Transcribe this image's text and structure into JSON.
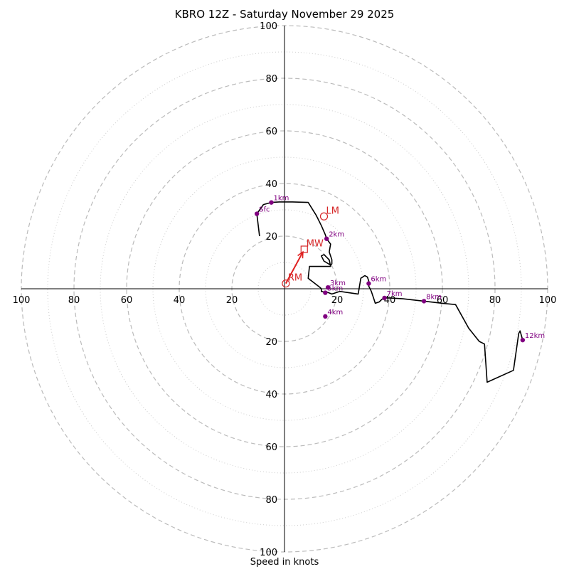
{
  "title": "KBRO 12Z - Saturday November 29 2025",
  "footer": "Speed in knots",
  "colors": {
    "trace": "#000000",
    "height_marker": "#800080",
    "motion": "#e02020",
    "storm_marker": "#d62728",
    "ring_major": "#bbbbbb",
    "ring_minor": "#cccccc",
    "axis": "#000000"
  },
  "chart_data": {
    "type": "hodograph",
    "units": "knots",
    "max_speed": 100,
    "major_rings": [
      20,
      40,
      60,
      80,
      100
    ],
    "minor_rings": [
      10,
      30,
      50,
      70,
      90
    ],
    "tick_labels": {
      "x_left": [
        "100",
        "80",
        "60",
        "40",
        "20"
      ],
      "x_right": [
        "20",
        "40",
        "60",
        "80",
        "100"
      ],
      "y_top": [
        "20",
        "40",
        "60",
        "80",
        "100"
      ],
      "y_bottom": [
        "20",
        "40",
        "60",
        "80",
        "100"
      ]
    },
    "trace": [
      [
        -9.5,
        20
      ],
      [
        -10.5,
        28.5
      ],
      [
        -8,
        32
      ],
      [
        -5,
        32.8
      ],
      [
        -2,
        33
      ],
      [
        3,
        33
      ],
      [
        9,
        32.8
      ],
      [
        12,
        28
      ],
      [
        14,
        24
      ],
      [
        15.5,
        20.5
      ],
      [
        16,
        19
      ],
      [
        17.5,
        17
      ],
      [
        17,
        14
      ],
      [
        18,
        11
      ],
      [
        18,
        9.5
      ],
      [
        17.5,
        9
      ],
      [
        15,
        10.5
      ],
      [
        14,
        12.5
      ],
      [
        15,
        13
      ],
      [
        16,
        12
      ],
      [
        17,
        11
      ],
      [
        17.5,
        8.5
      ],
      [
        9.5,
        8.5
      ],
      [
        9,
        4
      ],
      [
        13.5,
        0.5
      ],
      [
        14,
        0
      ],
      [
        14,
        -1
      ],
      [
        16,
        -1.5
      ],
      [
        15.5,
        -1
      ],
      [
        18,
        -2
      ],
      [
        21,
        -1
      ],
      [
        28,
        -2
      ],
      [
        29,
        4
      ],
      [
        30.5,
        5
      ],
      [
        31.5,
        4.5
      ],
      [
        32,
        3
      ],
      [
        32,
        1
      ],
      [
        32.5,
        0
      ],
      [
        33,
        -1
      ],
      [
        34,
        -4
      ],
      [
        34.5,
        -5.5
      ],
      [
        36,
        -5
      ],
      [
        37,
        -4
      ],
      [
        38,
        -3.5
      ],
      [
        40,
        -3.5
      ],
      [
        45,
        -3.8
      ],
      [
        53,
        -4.7
      ],
      [
        60,
        -5.5
      ],
      [
        65,
        -6
      ],
      [
        70,
        -15
      ],
      [
        74,
        -20
      ],
      [
        76,
        -21
      ],
      [
        77,
        -35.5
      ],
      [
        87,
        -31
      ],
      [
        89,
        -17
      ],
      [
        89.5,
        -16
      ],
      [
        90.5,
        -19.5
      ]
    ],
    "height_markers": [
      {
        "label": "Sfc",
        "u": -10.5,
        "v": 28.5
      },
      {
        "label": "1km",
        "u": -5,
        "v": 32.8
      },
      {
        "label": "2km",
        "u": 16,
        "v": 19
      },
      {
        "label": "3km",
        "u": 16.5,
        "v": 0.5
      },
      {
        "label": "4km",
        "u": 15.5,
        "v": -10.5
      },
      {
        "label": "5km",
        "u": 15.5,
        "v": -1.5
      },
      {
        "label": "6km",
        "u": 32,
        "v": 2
      },
      {
        "label": "7km",
        "u": 38,
        "v": -3.5
      },
      {
        "label": "8km",
        "u": 53,
        "v": -4.7
      },
      {
        "label": "12km",
        "u": 90.5,
        "v": -19.5
      }
    ],
    "storm_motion": [
      {
        "label": "RM",
        "u": 0.5,
        "v": 2,
        "shape": "circle"
      },
      {
        "label": "LM",
        "u": 15,
        "v": 27.5,
        "shape": "circle"
      },
      {
        "label": "MW",
        "u": 7.5,
        "v": 15,
        "shape": "square"
      }
    ],
    "motion_vector": {
      "from": [
        0.5,
        2
      ],
      "to": [
        7,
        14
      ]
    }
  }
}
